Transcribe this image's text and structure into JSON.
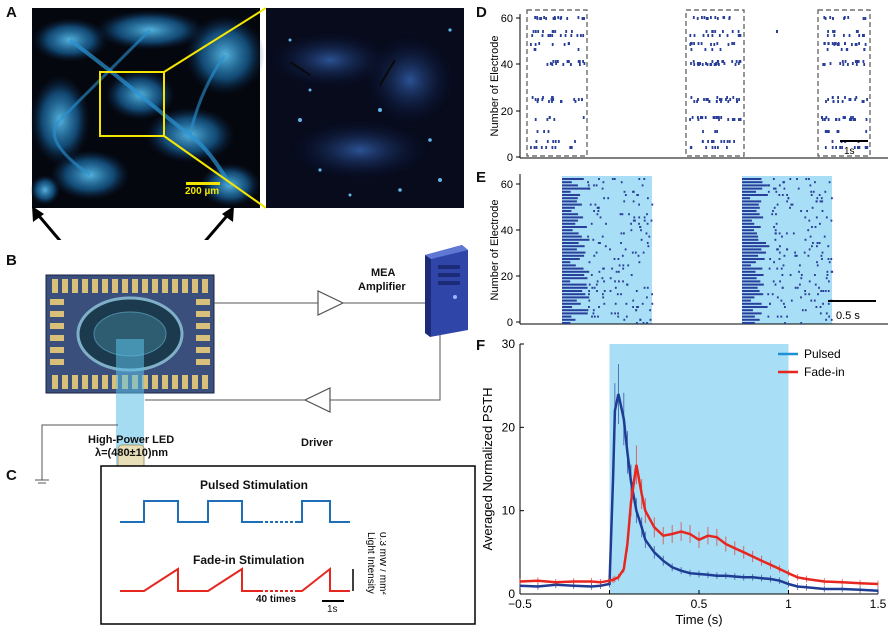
{
  "panels": {
    "a": {
      "letter": "A",
      "scale_bar": "200 µm"
    },
    "b": {
      "letter": "B",
      "amplifier_label_1": "MEA",
      "amplifier_label_2": "Amplifier",
      "driver_label": "Driver",
      "led_label_1": "High-Power LED",
      "led_label_2": "λ=(480±10)nm"
    },
    "c": {
      "letter": "C",
      "pulsed_title": "Pulsed Stimulation",
      "fadein_title": "Fade-in Stimulation",
      "repeat_label": "40 times",
      "time_scale": "1s",
      "intensity_label_1": "Light Intensity",
      "intensity_label_2": "0.3 mW / mm²"
    },
    "d": {
      "letter": "D",
      "ylabel": "Number of Electrode",
      "time_scale": "1s",
      "yticks": [
        "60",
        "40",
        "20",
        "0"
      ]
    },
    "e": {
      "letter": "E",
      "ylabel": "Number of Electrode",
      "time_scale": "0.5 s",
      "yticks": [
        "60",
        "40",
        "20",
        "0"
      ]
    },
    "f": {
      "letter": "F"
    }
  },
  "colors": {
    "cell_stain": "#2fa8e8",
    "raster": "#2a3f9a",
    "stim_window": "#a9dff6",
    "pulsed": "#1f3c94",
    "fadein": "#e62720",
    "legend_pulsed": "#1e90d6"
  },
  "chart_data": [
    {
      "type": "line",
      "panel": "F",
      "xlabel": "Time (s)",
      "ylabel": "Averaged Normalized PSTH",
      "xlim": [
        -0.5,
        1.5
      ],
      "ylim": [
        0,
        30
      ],
      "xticks": [
        "−0.5",
        "0",
        "0.5",
        "1",
        "1.5"
      ],
      "yticks": [
        "0",
        "10",
        "20",
        "30"
      ],
      "stimulus_window": [
        0,
        1
      ],
      "legend_position": "top-right",
      "x": [
        -0.5,
        -0.4,
        -0.3,
        -0.2,
        -0.1,
        -0.05,
        0,
        0.02,
        0.03,
        0.05,
        0.08,
        0.1,
        0.12,
        0.15,
        0.18,
        0.2,
        0.25,
        0.3,
        0.35,
        0.4,
        0.45,
        0.5,
        0.55,
        0.6,
        0.65,
        0.7,
        0.75,
        0.8,
        0.85,
        0.9,
        0.95,
        1.0,
        1.05,
        1.1,
        1.2,
        1.3,
        1.4,
        1.5
      ],
      "series": [
        {
          "name": "Pulsed",
          "values": [
            1.0,
            0.9,
            1.1,
            1.0,
            0.9,
            1.0,
            1.2,
            14,
            22,
            24,
            21,
            17,
            13.5,
            10,
            8,
            6.5,
            5,
            4,
            3.2,
            2.8,
            2.5,
            2.4,
            2.3,
            2.2,
            2.2,
            2.1,
            2.0,
            2.0,
            1.9,
            1.8,
            1.6,
            1.2,
            0.9,
            0.8,
            0.6,
            0.6,
            0.5,
            0.4
          ]
        },
        {
          "name": "Fade-in",
          "values": [
            1.5,
            1.6,
            1.4,
            1.5,
            1.5,
            1.4,
            1.6,
            1.7,
            1.8,
            2.0,
            3.0,
            6.0,
            11,
            15.5,
            12,
            10,
            8,
            7,
            7.2,
            7.5,
            7.2,
            6.5,
            7.0,
            6.8,
            6.0,
            5.5,
            5.0,
            4.5,
            4.0,
            3.5,
            3.0,
            2.5,
            2.0,
            1.8,
            1.5,
            1.4,
            1.3,
            1.2
          ]
        }
      ]
    }
  ]
}
